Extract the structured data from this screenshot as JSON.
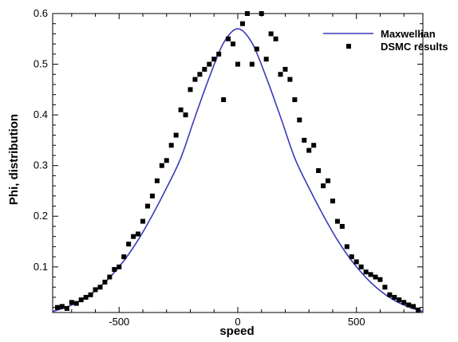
{
  "chart_data": {
    "type": "scatter",
    "title": "",
    "xlabel": "speed",
    "ylabel": "Phi, distribution",
    "xlim": [
      -780,
      780
    ],
    "ylim": [
      0.01,
      0.6
    ],
    "x_ticks": [
      -500,
      0,
      500
    ],
    "x_tick_labels": [
      "-500",
      "0",
      "500"
    ],
    "y_ticks": [
      0.1,
      0.2,
      0.3,
      0.4,
      0.5,
      0.6
    ],
    "y_tick_labels": [
      "0.1",
      "0.2",
      "0.3",
      "0.4",
      "0.5",
      "0.6"
    ],
    "grid": false,
    "legend": "top-right",
    "series": [
      {
        "name": "Maxwellian",
        "type": "line",
        "color": "#3a3ab8",
        "x": [
          -780,
          -720,
          -660,
          -600,
          -540,
          -480,
          -420,
          -360,
          -300,
          -240,
          -180,
          -120,
          -60,
          0,
          60,
          120,
          180,
          240,
          300,
          360,
          420,
          480,
          540,
          600,
          660,
          720,
          780
        ],
        "y": [
          0.012,
          0.021,
          0.034,
          0.053,
          0.079,
          0.112,
          0.153,
          0.202,
          0.256,
          0.315,
          0.396,
          0.474,
          0.542,
          0.57,
          0.542,
          0.474,
          0.396,
          0.315,
          0.256,
          0.202,
          0.153,
          0.112,
          0.079,
          0.053,
          0.034,
          0.021,
          0.012
        ]
      },
      {
        "name": "DSMC results",
        "type": "scatter",
        "color": "#000000",
        "x": [
          -760,
          -740,
          -720,
          -700,
          -680,
          -660,
          -640,
          -620,
          -600,
          -580,
          -560,
          -540,
          -520,
          -500,
          -480,
          -460,
          -440,
          -420,
          -400,
          -380,
          -360,
          -340,
          -320,
          -300,
          -280,
          -260,
          -240,
          -220,
          -200,
          -180,
          -160,
          -140,
          -120,
          -100,
          -80,
          -60,
          -40,
          -20,
          0,
          20,
          40,
          60,
          80,
          100,
          120,
          140,
          160,
          180,
          200,
          220,
          240,
          260,
          280,
          300,
          320,
          340,
          360,
          380,
          400,
          420,
          440,
          460,
          480,
          500,
          520,
          540,
          560,
          580,
          600,
          620,
          640,
          660,
          680,
          700,
          720,
          740,
          760
        ],
        "y": [
          0.02,
          0.022,
          0.018,
          0.03,
          0.028,
          0.035,
          0.04,
          0.045,
          0.055,
          0.06,
          0.07,
          0.08,
          0.095,
          0.1,
          0.12,
          0.145,
          0.16,
          0.165,
          0.19,
          0.22,
          0.24,
          0.27,
          0.3,
          0.31,
          0.34,
          0.36,
          0.41,
          0.4,
          0.45,
          0.47,
          0.48,
          0.49,
          0.5,
          0.51,
          0.52,
          0.43,
          0.55,
          0.54,
          0.5,
          0.58,
          0.6,
          0.5,
          0.53,
          0.6,
          0.51,
          0.56,
          0.55,
          0.48,
          0.49,
          0.47,
          0.43,
          0.39,
          0.35,
          0.33,
          0.34,
          0.29,
          0.26,
          0.27,
          0.23,
          0.19,
          0.18,
          0.14,
          0.12,
          0.11,
          0.1,
          0.09,
          0.085,
          0.08,
          0.075,
          0.06,
          0.045,
          0.04,
          0.035,
          0.03,
          0.025,
          0.022,
          0.015
        ]
      }
    ]
  }
}
